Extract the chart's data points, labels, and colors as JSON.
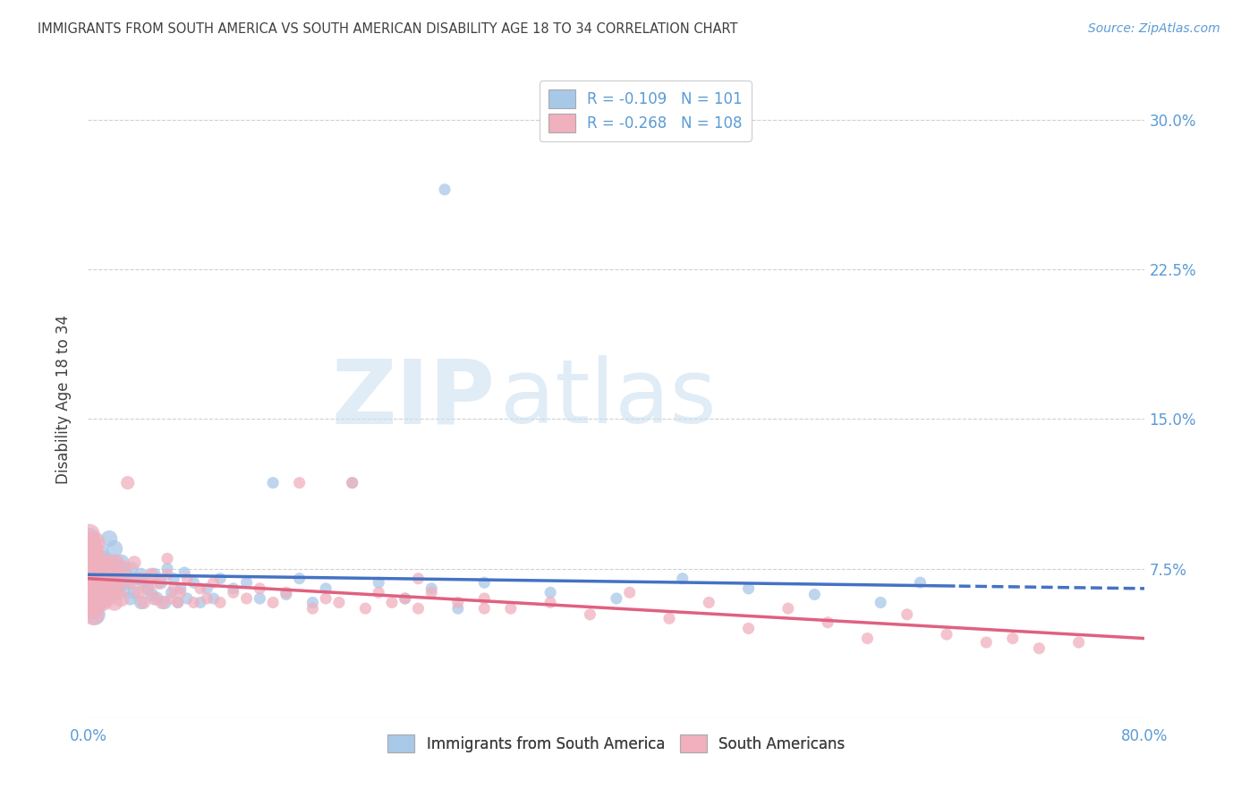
{
  "title": "IMMIGRANTS FROM SOUTH AMERICA VS SOUTH AMERICAN DISABILITY AGE 18 TO 34 CORRELATION CHART",
  "source": "Source: ZipAtlas.com",
  "ylabel": "Disability Age 18 to 34",
  "xmin": 0.0,
  "xmax": 0.8,
  "ymin": 0.0,
  "ymax": 0.32,
  "ytick_vals": [
    0.075,
    0.15,
    0.225,
    0.3
  ],
  "ytick_labels": [
    "7.5%",
    "15.0%",
    "22.5%",
    "30.0%"
  ],
  "blue_color": "#a8c8e8",
  "pink_color": "#f0b0be",
  "blue_line_color": "#4472c4",
  "pink_line_color": "#e06080",
  "r_blue": -0.109,
  "n_blue": 101,
  "r_pink": -0.268,
  "n_pink": 108,
  "background_color": "#ffffff",
  "grid_color": "#d0d0d0",
  "axis_color": "#5b9bd5",
  "title_color": "#404040",
  "blue_scatter": [
    [
      0.001,
      0.09
    ],
    [
      0.001,
      0.082
    ],
    [
      0.001,
      0.075
    ],
    [
      0.001,
      0.07
    ],
    [
      0.002,
      0.088
    ],
    [
      0.002,
      0.076
    ],
    [
      0.002,
      0.065
    ],
    [
      0.002,
      0.058
    ],
    [
      0.003,
      0.085
    ],
    [
      0.003,
      0.072
    ],
    [
      0.003,
      0.068
    ],
    [
      0.003,
      0.06
    ],
    [
      0.004,
      0.082
    ],
    [
      0.004,
      0.073
    ],
    [
      0.004,
      0.065
    ],
    [
      0.004,
      0.055
    ],
    [
      0.005,
      0.079
    ],
    [
      0.005,
      0.07
    ],
    [
      0.005,
      0.062
    ],
    [
      0.005,
      0.052
    ],
    [
      0.006,
      0.078
    ],
    [
      0.006,
      0.068
    ],
    [
      0.007,
      0.076
    ],
    [
      0.007,
      0.066
    ],
    [
      0.007,
      0.058
    ],
    [
      0.008,
      0.082
    ],
    [
      0.008,
      0.071
    ],
    [
      0.008,
      0.06
    ],
    [
      0.009,
      0.075
    ],
    [
      0.009,
      0.065
    ],
    [
      0.01,
      0.073
    ],
    [
      0.01,
      0.063
    ],
    [
      0.011,
      0.08
    ],
    [
      0.011,
      0.068
    ],
    [
      0.012,
      0.07
    ],
    [
      0.012,
      0.06
    ],
    [
      0.013,
      0.075
    ],
    [
      0.013,
      0.062
    ],
    [
      0.014,
      0.072
    ],
    [
      0.015,
      0.068
    ],
    [
      0.016,
      0.09
    ],
    [
      0.016,
      0.075
    ],
    [
      0.017,
      0.078
    ],
    [
      0.018,
      0.065
    ],
    [
      0.019,
      0.073
    ],
    [
      0.02,
      0.085
    ],
    [
      0.02,
      0.068
    ],
    [
      0.021,
      0.076
    ],
    [
      0.022,
      0.063
    ],
    [
      0.023,
      0.07
    ],
    [
      0.025,
      0.078
    ],
    [
      0.026,
      0.065
    ],
    [
      0.028,
      0.072
    ],
    [
      0.03,
      0.068
    ],
    [
      0.032,
      0.06
    ],
    [
      0.033,
      0.075
    ],
    [
      0.035,
      0.063
    ],
    [
      0.037,
      0.07
    ],
    [
      0.04,
      0.072
    ],
    [
      0.04,
      0.058
    ],
    [
      0.042,
      0.068
    ],
    [
      0.045,
      0.065
    ],
    [
      0.048,
      0.062
    ],
    [
      0.05,
      0.072
    ],
    [
      0.052,
      0.06
    ],
    [
      0.055,
      0.068
    ],
    [
      0.058,
      0.058
    ],
    [
      0.06,
      0.075
    ],
    [
      0.063,
      0.063
    ],
    [
      0.065,
      0.07
    ],
    [
      0.068,
      0.058
    ],
    [
      0.07,
      0.065
    ],
    [
      0.073,
      0.073
    ],
    [
      0.075,
      0.06
    ],
    [
      0.08,
      0.068
    ],
    [
      0.085,
      0.058
    ],
    [
      0.09,
      0.065
    ],
    [
      0.095,
      0.06
    ],
    [
      0.1,
      0.07
    ],
    [
      0.11,
      0.065
    ],
    [
      0.12,
      0.068
    ],
    [
      0.13,
      0.06
    ],
    [
      0.14,
      0.118
    ],
    [
      0.15,
      0.062
    ],
    [
      0.16,
      0.07
    ],
    [
      0.17,
      0.058
    ],
    [
      0.18,
      0.065
    ],
    [
      0.2,
      0.118
    ],
    [
      0.22,
      0.068
    ],
    [
      0.24,
      0.06
    ],
    [
      0.26,
      0.065
    ],
    [
      0.28,
      0.055
    ],
    [
      0.3,
      0.068
    ],
    [
      0.35,
      0.063
    ],
    [
      0.4,
      0.06
    ],
    [
      0.45,
      0.07
    ],
    [
      0.5,
      0.065
    ],
    [
      0.55,
      0.062
    ],
    [
      0.6,
      0.058
    ],
    [
      0.63,
      0.068
    ],
    [
      0.27,
      0.265
    ]
  ],
  "pink_scatter": [
    [
      0.001,
      0.092
    ],
    [
      0.001,
      0.082
    ],
    [
      0.001,
      0.072
    ],
    [
      0.001,
      0.063
    ],
    [
      0.002,
      0.088
    ],
    [
      0.002,
      0.078
    ],
    [
      0.002,
      0.068
    ],
    [
      0.002,
      0.058
    ],
    [
      0.003,
      0.085
    ],
    [
      0.003,
      0.075
    ],
    [
      0.003,
      0.065
    ],
    [
      0.003,
      0.055
    ],
    [
      0.004,
      0.082
    ],
    [
      0.004,
      0.072
    ],
    [
      0.004,
      0.062
    ],
    [
      0.004,
      0.052
    ],
    [
      0.005,
      0.088
    ],
    [
      0.005,
      0.075
    ],
    [
      0.005,
      0.065
    ],
    [
      0.006,
      0.08
    ],
    [
      0.006,
      0.07
    ],
    [
      0.006,
      0.058
    ],
    [
      0.007,
      0.078
    ],
    [
      0.007,
      0.068
    ],
    [
      0.008,
      0.076
    ],
    [
      0.008,
      0.063
    ],
    [
      0.009,
      0.073
    ],
    [
      0.009,
      0.06
    ],
    [
      0.01,
      0.078
    ],
    [
      0.01,
      0.065
    ],
    [
      0.011,
      0.075
    ],
    [
      0.011,
      0.062
    ],
    [
      0.012,
      0.072
    ],
    [
      0.012,
      0.058
    ],
    [
      0.013,
      0.07
    ],
    [
      0.014,
      0.065
    ],
    [
      0.015,
      0.078
    ],
    [
      0.015,
      0.06
    ],
    [
      0.016,
      0.075
    ],
    [
      0.017,
      0.068
    ],
    [
      0.018,
      0.063
    ],
    [
      0.019,
      0.073
    ],
    [
      0.02,
      0.068
    ],
    [
      0.02,
      0.058
    ],
    [
      0.021,
      0.078
    ],
    [
      0.022,
      0.065
    ],
    [
      0.023,
      0.072
    ],
    [
      0.025,
      0.06
    ],
    [
      0.027,
      0.075
    ],
    [
      0.03,
      0.118
    ],
    [
      0.032,
      0.068
    ],
    [
      0.035,
      0.078
    ],
    [
      0.038,
      0.063
    ],
    [
      0.04,
      0.07
    ],
    [
      0.042,
      0.058
    ],
    [
      0.045,
      0.065
    ],
    [
      0.048,
      0.072
    ],
    [
      0.05,
      0.06
    ],
    [
      0.053,
      0.068
    ],
    [
      0.056,
      0.058
    ],
    [
      0.06,
      0.072
    ],
    [
      0.063,
      0.06
    ],
    [
      0.065,
      0.065
    ],
    [
      0.068,
      0.058
    ],
    [
      0.07,
      0.063
    ],
    [
      0.075,
      0.07
    ],
    [
      0.08,
      0.058
    ],
    [
      0.085,
      0.065
    ],
    [
      0.09,
      0.06
    ],
    [
      0.095,
      0.068
    ],
    [
      0.1,
      0.058
    ],
    [
      0.11,
      0.063
    ],
    [
      0.12,
      0.06
    ],
    [
      0.13,
      0.065
    ],
    [
      0.14,
      0.058
    ],
    [
      0.15,
      0.063
    ],
    [
      0.16,
      0.118
    ],
    [
      0.17,
      0.055
    ],
    [
      0.18,
      0.06
    ],
    [
      0.19,
      0.058
    ],
    [
      0.2,
      0.118
    ],
    [
      0.21,
      0.055
    ],
    [
      0.22,
      0.063
    ],
    [
      0.23,
      0.058
    ],
    [
      0.24,
      0.06
    ],
    [
      0.25,
      0.055
    ],
    [
      0.26,
      0.063
    ],
    [
      0.28,
      0.058
    ],
    [
      0.3,
      0.06
    ],
    [
      0.32,
      0.055
    ],
    [
      0.35,
      0.058
    ],
    [
      0.38,
      0.052
    ],
    [
      0.41,
      0.063
    ],
    [
      0.44,
      0.05
    ],
    [
      0.47,
      0.058
    ],
    [
      0.5,
      0.045
    ],
    [
      0.53,
      0.055
    ],
    [
      0.56,
      0.048
    ],
    [
      0.59,
      0.04
    ],
    [
      0.62,
      0.052
    ],
    [
      0.65,
      0.042
    ],
    [
      0.68,
      0.038
    ],
    [
      0.7,
      0.04
    ],
    [
      0.72,
      0.035
    ],
    [
      0.75,
      0.038
    ],
    [
      0.06,
      0.08
    ],
    [
      0.25,
      0.07
    ],
    [
      0.3,
      0.055
    ]
  ]
}
